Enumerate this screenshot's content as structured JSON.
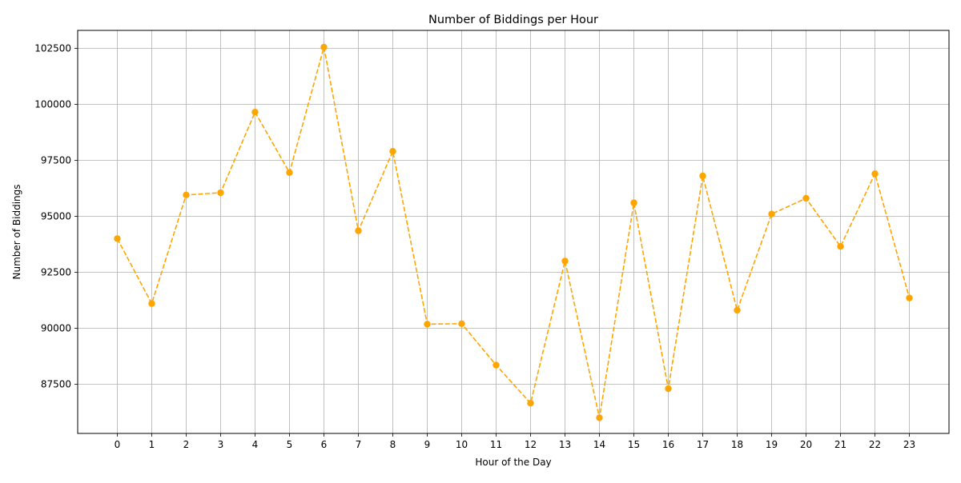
{
  "chart_data": {
    "type": "line",
    "title": "Number of Biddings per Hour",
    "xlabel": "Hour of the Day",
    "ylabel": "Number of Biddings",
    "x": [
      0,
      1,
      2,
      3,
      4,
      5,
      6,
      7,
      8,
      9,
      10,
      11,
      12,
      13,
      14,
      15,
      16,
      17,
      18,
      19,
      20,
      21,
      22,
      23
    ],
    "series": [
      {
        "values": [
          94000,
          91100,
          95950,
          96050,
          99650,
          96950,
          102550,
          94350,
          97900,
          90180,
          90200,
          88350,
          86650,
          93000,
          86000,
          95600,
          87300,
          96800,
          90800,
          95100,
          95800,
          93650,
          96900,
          91350
        ],
        "color": "#FFA500",
        "line_style": "dashed",
        "marker": "circle"
      }
    ],
    "xticks": [
      "0",
      "1",
      "2",
      "3",
      "4",
      "5",
      "6",
      "7",
      "8",
      "9",
      "10",
      "11",
      "12",
      "13",
      "14",
      "15",
      "16",
      "17",
      "18",
      "19",
      "20",
      "21",
      "22",
      "23"
    ],
    "yticks": [
      "87500",
      "90000",
      "92500",
      "95000",
      "97500",
      "100000",
      "102500"
    ],
    "xlim": [
      -1.15,
      24.15
    ],
    "ylim": [
      85300,
      103300
    ],
    "grid": true,
    "grid_color": "#b0b0b0",
    "axis_color": "#000000"
  }
}
